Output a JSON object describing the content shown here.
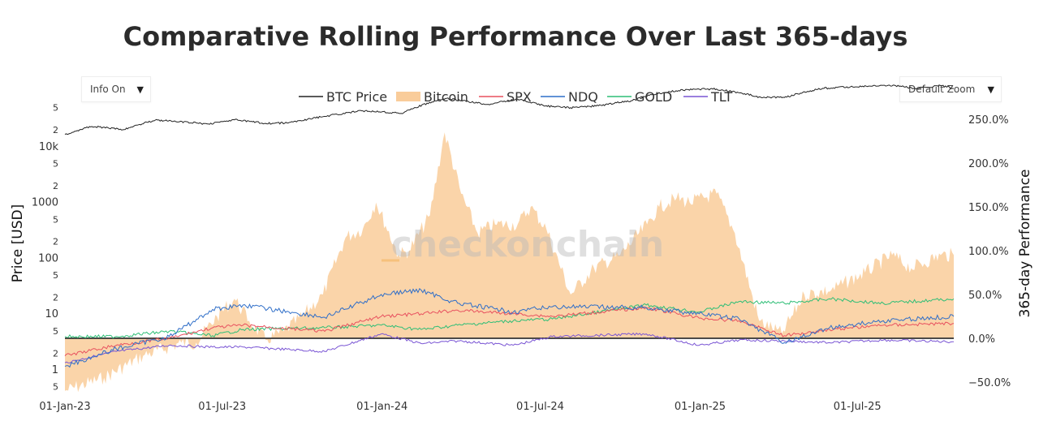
{
  "title": "Comparative Rolling Performance Over Last 365-days",
  "controls": {
    "info_toggle": "Info On",
    "zoom_select": "Default Zoom"
  },
  "watermark": "checkonchain",
  "legend": [
    {
      "name": "BTC Price",
      "color": "#222222",
      "kind": "line"
    },
    {
      "name": "Bitcoin",
      "color": "#f7c48e",
      "kind": "area"
    },
    {
      "name": "SPX",
      "color": "#e8515f",
      "kind": "line"
    },
    {
      "name": "NDQ",
      "color": "#2f6ec8",
      "kind": "line"
    },
    {
      "name": "GOLD",
      "color": "#2ebe76",
      "kind": "line"
    },
    {
      "name": "TLT",
      "color": "#7a55d4",
      "kind": "line"
    }
  ],
  "chart_data": {
    "type": "line",
    "x_ticks": [
      "01-Jan-23",
      "01-Jul-23",
      "01-Jan-24",
      "01-Jul-24",
      "01-Jan-25",
      "01-Jul-25"
    ],
    "x_range": [
      "2023-01-01",
      "2025-10-20"
    ],
    "y_left": {
      "label": "Price [USD]",
      "scale": "log",
      "ticks": [
        "5",
        "2",
        "10k",
        "5",
        "2",
        "1000",
        "5",
        "2",
        "100",
        "5",
        "2",
        "10",
        "5",
        "2",
        "1",
        "5"
      ]
    },
    "y_right": {
      "label": "365-day Performance",
      "ticks": [
        "250.0%",
        "200.0%",
        "150.0%",
        "100.0%",
        "50.0%",
        "0.0%",
        "−50.0%"
      ],
      "range": [
        -60,
        260
      ]
    },
    "series": [
      {
        "name": "BTC Price",
        "points": [
          [
            "2023-01-01",
            16600
          ],
          [
            "2023-02-01",
            23000
          ],
          [
            "2023-03-10",
            20200
          ],
          [
            "2023-04-15",
            30000
          ],
          [
            "2023-06-15",
            25500
          ],
          [
            "2023-07-15",
            30300
          ],
          [
            "2023-08-20",
            26100
          ],
          [
            "2023-09-15",
            26600
          ],
          [
            "2023-10-25",
            34500
          ],
          [
            "2023-12-10",
            43900
          ],
          [
            "2024-01-01",
            42300
          ],
          [
            "2024-01-23",
            39500
          ],
          [
            "2024-03-14",
            73000
          ],
          [
            "2024-05-01",
            57000
          ],
          [
            "2024-06-05",
            71000
          ],
          [
            "2024-07-05",
            54000
          ],
          [
            "2024-08-05",
            50000
          ],
          [
            "2024-09-06",
            54000
          ],
          [
            "2024-10-15",
            67000
          ],
          [
            "2024-11-12",
            89000
          ],
          [
            "2024-12-17",
            106000
          ],
          [
            "2025-01-20",
            108000
          ],
          [
            "2025-03-10",
            78000
          ],
          [
            "2025-04-08",
            76000
          ],
          [
            "2025-05-22",
            111000
          ],
          [
            "2025-07-14",
            122000
          ],
          [
            "2025-08-14",
            124000
          ],
          [
            "2025-09-05",
            110000
          ],
          [
            "2025-10-05",
            124000
          ],
          [
            "2025-10-20",
            110000
          ]
        ]
      },
      {
        "name": "Bitcoin",
        "points": [
          [
            "2023-01-01",
            -60
          ],
          [
            "2023-02-15",
            -45
          ],
          [
            "2023-04-01",
            -20
          ],
          [
            "2023-05-15",
            -5
          ],
          [
            "2023-06-01",
            -5
          ],
          [
            "2023-06-25",
            25
          ],
          [
            "2023-07-15",
            45
          ],
          [
            "2023-08-01",
            20
          ],
          [
            "2023-08-20",
            -2
          ],
          [
            "2023-09-10",
            8
          ],
          [
            "2023-10-01",
            25
          ],
          [
            "2023-10-25",
            50
          ],
          [
            "2023-11-20",
            115
          ],
          [
            "2023-12-10",
            125
          ],
          [
            "2023-12-25",
            155
          ],
          [
            "2024-01-20",
            95
          ],
          [
            "2024-02-01",
            100
          ],
          [
            "2024-02-25",
            140
          ],
          [
            "2024-03-13",
            235
          ],
          [
            "2024-04-01",
            165
          ],
          [
            "2024-04-20",
            120
          ],
          [
            "2024-05-10",
            130
          ],
          [
            "2024-06-05",
            130
          ],
          [
            "2024-06-20",
            150
          ],
          [
            "2024-07-08",
            125
          ],
          [
            "2024-08-05",
            50
          ],
          [
            "2024-09-01",
            80
          ],
          [
            "2024-10-01",
            95
          ],
          [
            "2024-11-01",
            130
          ],
          [
            "2024-11-15",
            150
          ],
          [
            "2024-12-05",
            160
          ],
          [
            "2024-12-20",
            155
          ],
          [
            "2025-01-20",
            165
          ],
          [
            "2025-02-10",
            120
          ],
          [
            "2025-03-10",
            20
          ],
          [
            "2025-04-05",
            5
          ],
          [
            "2025-05-01",
            50
          ],
          [
            "2025-06-01",
            55
          ],
          [
            "2025-07-10",
            75
          ],
          [
            "2025-08-10",
            95
          ],
          [
            "2025-09-01",
            80
          ],
          [
            "2025-10-05",
            95
          ],
          [
            "2025-10-20",
            95
          ]
        ]
      },
      {
        "name": "SPX",
        "points": [
          [
            "2023-01-01",
            -20
          ],
          [
            "2023-03-01",
            -8
          ],
          [
            "2023-05-01",
            0
          ],
          [
            "2023-06-20",
            12
          ],
          [
            "2023-07-25",
            15
          ],
          [
            "2023-10-27",
            8
          ],
          [
            "2023-12-31",
            25
          ],
          [
            "2024-02-15",
            28
          ],
          [
            "2024-03-28",
            32
          ],
          [
            "2024-05-31",
            28
          ],
          [
            "2024-07-15",
            25
          ],
          [
            "2024-10-31",
            35
          ],
          [
            "2024-12-31",
            23
          ],
          [
            "2025-02-15",
            20
          ],
          [
            "2025-04-08",
            3
          ],
          [
            "2025-05-30",
            10
          ],
          [
            "2025-07-31",
            15
          ],
          [
            "2025-10-20",
            17
          ]
        ]
      },
      {
        "name": "NDQ",
        "points": [
          [
            "2023-01-01",
            -32
          ],
          [
            "2023-03-01",
            -12
          ],
          [
            "2023-05-01",
            2
          ],
          [
            "2023-06-20",
            33
          ],
          [
            "2023-07-25",
            38
          ],
          [
            "2023-10-27",
            24
          ],
          [
            "2023-12-31",
            50
          ],
          [
            "2024-02-15",
            55
          ],
          [
            "2024-03-28",
            40
          ],
          [
            "2024-05-31",
            30
          ],
          [
            "2024-07-15",
            36
          ],
          [
            "2024-10-31",
            35
          ],
          [
            "2024-12-31",
            28
          ],
          [
            "2025-02-15",
            22
          ],
          [
            "2025-04-08",
            -5
          ],
          [
            "2025-05-30",
            12
          ],
          [
            "2025-07-31",
            20
          ],
          [
            "2025-10-20",
            25
          ]
        ]
      },
      {
        "name": "GOLD",
        "points": [
          [
            "2023-01-01",
            2
          ],
          [
            "2023-03-01",
            2
          ],
          [
            "2023-05-01",
            8
          ],
          [
            "2023-06-20",
            3
          ],
          [
            "2023-07-25",
            10
          ],
          [
            "2023-10-27",
            12
          ],
          [
            "2023-12-31",
            15
          ],
          [
            "2024-02-15",
            10
          ],
          [
            "2024-03-28",
            15
          ],
          [
            "2024-05-31",
            20
          ],
          [
            "2024-07-15",
            22
          ],
          [
            "2024-10-31",
            38
          ],
          [
            "2024-12-31",
            30
          ],
          [
            "2025-02-15",
            42
          ],
          [
            "2025-04-08",
            40
          ],
          [
            "2025-05-30",
            45
          ],
          [
            "2025-07-31",
            40
          ],
          [
            "2025-10-20",
            45
          ]
        ]
      },
      {
        "name": "TLT",
        "points": [
          [
            "2023-01-01",
            -28
          ],
          [
            "2023-03-01",
            -15
          ],
          [
            "2023-05-01",
            -8
          ],
          [
            "2023-06-20",
            -10
          ],
          [
            "2023-07-25",
            -10
          ],
          [
            "2023-10-27",
            -15
          ],
          [
            "2023-12-31",
            5
          ],
          [
            "2024-02-15",
            -6
          ],
          [
            "2024-03-28",
            -3
          ],
          [
            "2024-05-31",
            -8
          ],
          [
            "2024-07-15",
            2
          ],
          [
            "2024-10-31",
            5
          ],
          [
            "2024-12-31",
            -8
          ],
          [
            "2025-02-15",
            -2
          ],
          [
            "2025-04-08",
            -3
          ],
          [
            "2025-05-30",
            -5
          ],
          [
            "2025-07-31",
            -2
          ],
          [
            "2025-10-20",
            -4
          ]
        ]
      }
    ]
  }
}
